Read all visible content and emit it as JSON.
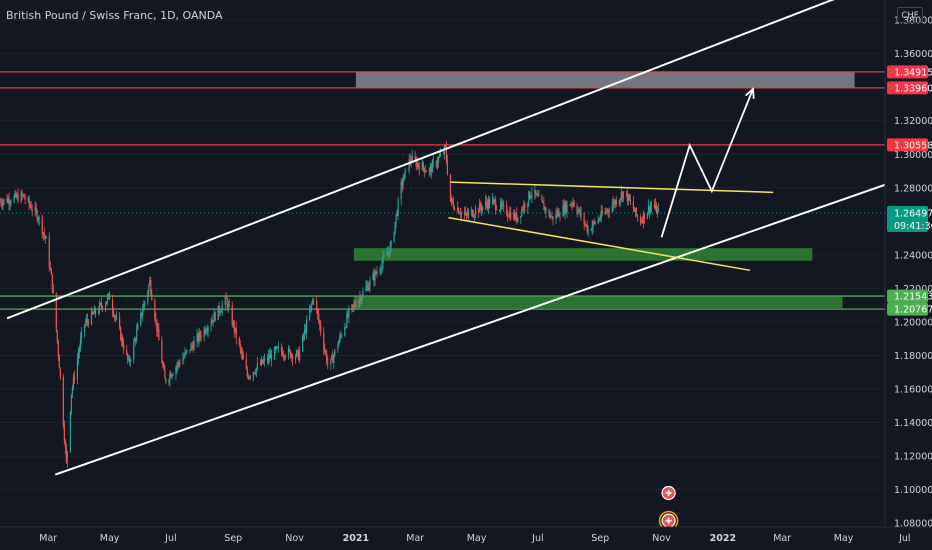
{
  "header": {
    "symbol_title": "British Pound / Swiss Franc, 1D, OANDA",
    "currency": "CHF"
  },
  "colors": {
    "background": "#131722",
    "candle_up": "#26a69a",
    "candle_down": "#ef5350",
    "resistance": "#f23645",
    "support": "#4caf50",
    "support_zone": "#2e7d32",
    "supply_zone": "#787b86",
    "channel": "#ffffff",
    "wedge": "#f7e463",
    "current_price": "#089981"
  },
  "chart_data": {
    "type": "candlestick",
    "title": "British Pound / Swiss Franc, 1D, OANDA",
    "ylim": [
      1.064,
      1.392
    ],
    "y_ticks": [
      "1.38000",
      "1.36000",
      "1.32000",
      "1.30000",
      "1.28000",
      "1.24000",
      "1.22000",
      "1.20000",
      "1.18000",
      "1.16000",
      "1.14000",
      "1.12000",
      "1.10000",
      "1.08000"
    ],
    "x_ticks": [
      "Mar",
      "May",
      "Jul",
      "Sep",
      "Nov",
      "2021",
      "Mar",
      "May",
      "Jul",
      "Sep",
      "Nov",
      "2022",
      "Mar",
      "May",
      "Jul"
    ],
    "x_ticks_bold": [
      "2021",
      "2022"
    ],
    "x_start": "2020-01-13",
    "x_end": "2022-07-28",
    "price_path": [
      [
        "2020-01-13",
        1.272
      ],
      [
        "2020-02-05",
        1.275
      ],
      [
        "2020-02-20",
        1.263
      ],
      [
        "2020-02-28",
        1.248
      ],
      [
        "2020-03-05",
        1.222
      ],
      [
        "2020-03-12",
        1.175
      ],
      [
        "2020-03-19",
        1.115
      ],
      [
        "2020-03-24",
        1.158
      ],
      [
        "2020-04-05",
        1.198
      ],
      [
        "2020-05-01",
        1.215
      ],
      [
        "2020-05-20",
        1.175
      ],
      [
        "2020-06-10",
        1.224
      ],
      [
        "2020-06-25",
        1.165
      ],
      [
        "2020-07-25",
        1.188
      ],
      [
        "2020-08-25",
        1.213
      ],
      [
        "2020-09-15",
        1.168
      ],
      [
        "2020-10-15",
        1.183
      ],
      [
        "2020-11-05",
        1.18
      ],
      [
        "2020-11-20",
        1.215
      ],
      [
        "2020-12-05",
        1.172
      ],
      [
        "2020-12-25",
        1.205
      ],
      [
        "2021-01-20",
        1.228
      ],
      [
        "2021-02-05",
        1.245
      ],
      [
        "2021-02-15",
        1.281
      ],
      [
        "2021-02-24",
        1.297
      ],
      [
        "2021-03-15",
        1.29
      ],
      [
        "2021-03-31",
        1.303
      ],
      [
        "2021-04-05",
        1.272
      ],
      [
        "2021-04-20",
        1.263
      ],
      [
        "2021-05-15",
        1.272
      ],
      [
        "2021-06-10",
        1.262
      ],
      [
        "2021-06-25",
        1.278
      ],
      [
        "2021-07-15",
        1.262
      ],
      [
        "2021-08-05",
        1.272
      ],
      [
        "2021-08-20",
        1.255
      ],
      [
        "2021-09-10",
        1.268
      ],
      [
        "2021-09-25",
        1.278
      ],
      [
        "2021-10-10",
        1.26
      ],
      [
        "2021-10-22",
        1.27
      ],
      [
        "2021-10-29",
        1.265
      ]
    ],
    "current_price": {
      "value": "1.26497",
      "countdown": "09:41:36"
    },
    "horizontal_lines": [
      {
        "kind": "resistance",
        "value": 1.34915,
        "label": "1.34915"
      },
      {
        "kind": "resistance",
        "value": 1.3396,
        "label": "1.33960"
      },
      {
        "kind": "resistance",
        "value": 1.30558,
        "label": "1.30558"
      },
      {
        "kind": "support",
        "value": 1.21543,
        "label": "1.21543"
      },
      {
        "kind": "support",
        "value": 1.20767,
        "label": "1.20767"
      }
    ],
    "zones": [
      {
        "kind": "supply",
        "x1": "2021-01-01",
        "x2": "2022-05-12",
        "y1": 1.3396,
        "y2": 1.3492
      },
      {
        "kind": "demand",
        "x1": "2020-12-30",
        "x2": "2022-03-31",
        "y1": 1.2365,
        "y2": 1.244
      },
      {
        "kind": "demand",
        "x1": "2020-12-30",
        "x2": "2022-04-30",
        "y1": 1.2082,
        "y2": 1.215
      }
    ],
    "channel_lines": [
      {
        "x1": "2020-01-20",
        "y1": 1.2022,
        "x2": "2022-04-25",
        "y2": 1.3933
      },
      {
        "x1": "2020-03-08",
        "y1": 1.109,
        "x2": "2022-07-28",
        "y2": 1.2916
      }
    ],
    "wedge_lines": [
      {
        "x1": "2021-04-05",
        "y1": 1.2834,
        "x2": "2022-02-20",
        "y2": 1.2773
      },
      {
        "x1": "2021-04-03",
        "y1": 1.2622,
        "x2": "2022-01-28",
        "y2": 1.2308
      }
    ],
    "projection_path": [
      [
        "2021-11-01",
        1.2505
      ],
      [
        "2021-11-29",
        1.3054
      ],
      [
        "2021-12-21",
        1.278
      ],
      [
        "2022-01-31",
        1.339
      ]
    ],
    "events": [
      {
        "date": "2021-11-08",
        "y": 1.098,
        "icon": "plus-badge-icon"
      },
      {
        "date": "2021-11-08",
        "y": 1.0815,
        "icon": "event-badge-icon"
      }
    ]
  }
}
